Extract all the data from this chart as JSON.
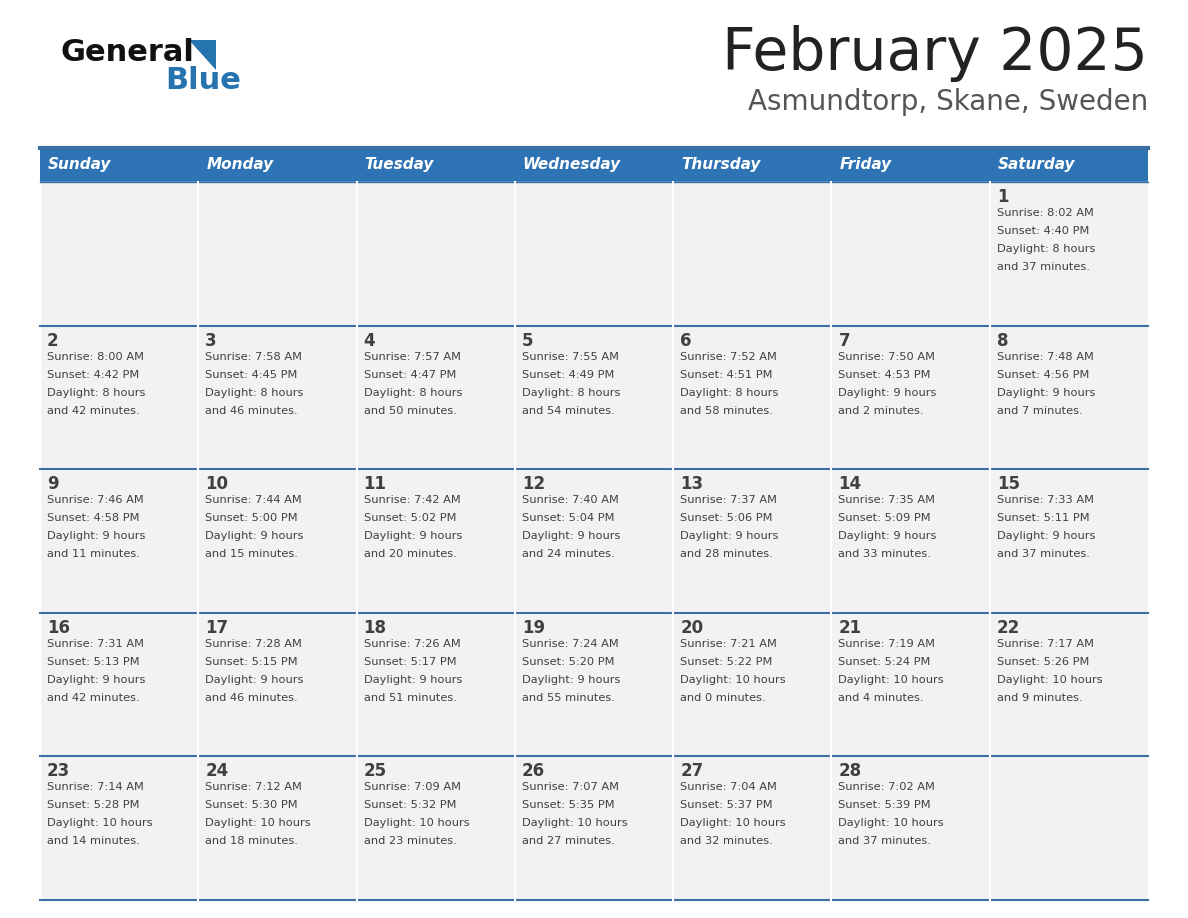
{
  "title": "February 2025",
  "subtitle": "Asmundtorp, Skane, Sweden",
  "days_of_week": [
    "Sunday",
    "Monday",
    "Tuesday",
    "Wednesday",
    "Thursday",
    "Friday",
    "Saturday"
  ],
  "header_bg": "#2E74B5",
  "header_text": "#FFFFFF",
  "cell_bg": "#F2F2F2",
  "separator_color": "#3A6EA5",
  "text_color": "#404040",
  "title_color": "#222222",
  "subtitle_color": "#555555",
  "logo_general_color": "#111111",
  "logo_blue_color": "#2574B0",
  "calendar": [
    [
      {
        "day": null,
        "sunrise": null,
        "sunset": null,
        "daylight": null
      },
      {
        "day": null,
        "sunrise": null,
        "sunset": null,
        "daylight": null
      },
      {
        "day": null,
        "sunrise": null,
        "sunset": null,
        "daylight": null
      },
      {
        "day": null,
        "sunrise": null,
        "sunset": null,
        "daylight": null
      },
      {
        "day": null,
        "sunrise": null,
        "sunset": null,
        "daylight": null
      },
      {
        "day": null,
        "sunrise": null,
        "sunset": null,
        "daylight": null
      },
      {
        "day": 1,
        "sunrise": "8:02 AM",
        "sunset": "4:40 PM",
        "daylight": "8 hours\nand 37 minutes."
      }
    ],
    [
      {
        "day": 2,
        "sunrise": "8:00 AM",
        "sunset": "4:42 PM",
        "daylight": "8 hours\nand 42 minutes."
      },
      {
        "day": 3,
        "sunrise": "7:58 AM",
        "sunset": "4:45 PM",
        "daylight": "8 hours\nand 46 minutes."
      },
      {
        "day": 4,
        "sunrise": "7:57 AM",
        "sunset": "4:47 PM",
        "daylight": "8 hours\nand 50 minutes."
      },
      {
        "day": 5,
        "sunrise": "7:55 AM",
        "sunset": "4:49 PM",
        "daylight": "8 hours\nand 54 minutes."
      },
      {
        "day": 6,
        "sunrise": "7:52 AM",
        "sunset": "4:51 PM",
        "daylight": "8 hours\nand 58 minutes."
      },
      {
        "day": 7,
        "sunrise": "7:50 AM",
        "sunset": "4:53 PM",
        "daylight": "9 hours\nand 2 minutes."
      },
      {
        "day": 8,
        "sunrise": "7:48 AM",
        "sunset": "4:56 PM",
        "daylight": "9 hours\nand 7 minutes."
      }
    ],
    [
      {
        "day": 9,
        "sunrise": "7:46 AM",
        "sunset": "4:58 PM",
        "daylight": "9 hours\nand 11 minutes."
      },
      {
        "day": 10,
        "sunrise": "7:44 AM",
        "sunset": "5:00 PM",
        "daylight": "9 hours\nand 15 minutes."
      },
      {
        "day": 11,
        "sunrise": "7:42 AM",
        "sunset": "5:02 PM",
        "daylight": "9 hours\nand 20 minutes."
      },
      {
        "day": 12,
        "sunrise": "7:40 AM",
        "sunset": "5:04 PM",
        "daylight": "9 hours\nand 24 minutes."
      },
      {
        "day": 13,
        "sunrise": "7:37 AM",
        "sunset": "5:06 PM",
        "daylight": "9 hours\nand 28 minutes."
      },
      {
        "day": 14,
        "sunrise": "7:35 AM",
        "sunset": "5:09 PM",
        "daylight": "9 hours\nand 33 minutes."
      },
      {
        "day": 15,
        "sunrise": "7:33 AM",
        "sunset": "5:11 PM",
        "daylight": "9 hours\nand 37 minutes."
      }
    ],
    [
      {
        "day": 16,
        "sunrise": "7:31 AM",
        "sunset": "5:13 PM",
        "daylight": "9 hours\nand 42 minutes."
      },
      {
        "day": 17,
        "sunrise": "7:28 AM",
        "sunset": "5:15 PM",
        "daylight": "9 hours\nand 46 minutes."
      },
      {
        "day": 18,
        "sunrise": "7:26 AM",
        "sunset": "5:17 PM",
        "daylight": "9 hours\nand 51 minutes."
      },
      {
        "day": 19,
        "sunrise": "7:24 AM",
        "sunset": "5:20 PM",
        "daylight": "9 hours\nand 55 minutes."
      },
      {
        "day": 20,
        "sunrise": "7:21 AM",
        "sunset": "5:22 PM",
        "daylight": "10 hours\nand 0 minutes."
      },
      {
        "day": 21,
        "sunrise": "7:19 AM",
        "sunset": "5:24 PM",
        "daylight": "10 hours\nand 4 minutes."
      },
      {
        "day": 22,
        "sunrise": "7:17 AM",
        "sunset": "5:26 PM",
        "daylight": "10 hours\nand 9 minutes."
      }
    ],
    [
      {
        "day": 23,
        "sunrise": "7:14 AM",
        "sunset": "5:28 PM",
        "daylight": "10 hours\nand 14 minutes."
      },
      {
        "day": 24,
        "sunrise": "7:12 AM",
        "sunset": "5:30 PM",
        "daylight": "10 hours\nand 18 minutes."
      },
      {
        "day": 25,
        "sunrise": "7:09 AM",
        "sunset": "5:32 PM",
        "daylight": "10 hours\nand 23 minutes."
      },
      {
        "day": 26,
        "sunrise": "7:07 AM",
        "sunset": "5:35 PM",
        "daylight": "10 hours\nand 27 minutes."
      },
      {
        "day": 27,
        "sunrise": "7:04 AM",
        "sunset": "5:37 PM",
        "daylight": "10 hours\nand 32 minutes."
      },
      {
        "day": 28,
        "sunrise": "7:02 AM",
        "sunset": "5:39 PM",
        "daylight": "10 hours\nand 37 minutes."
      },
      {
        "day": null,
        "sunrise": null,
        "sunset": null,
        "daylight": null
      }
    ]
  ]
}
